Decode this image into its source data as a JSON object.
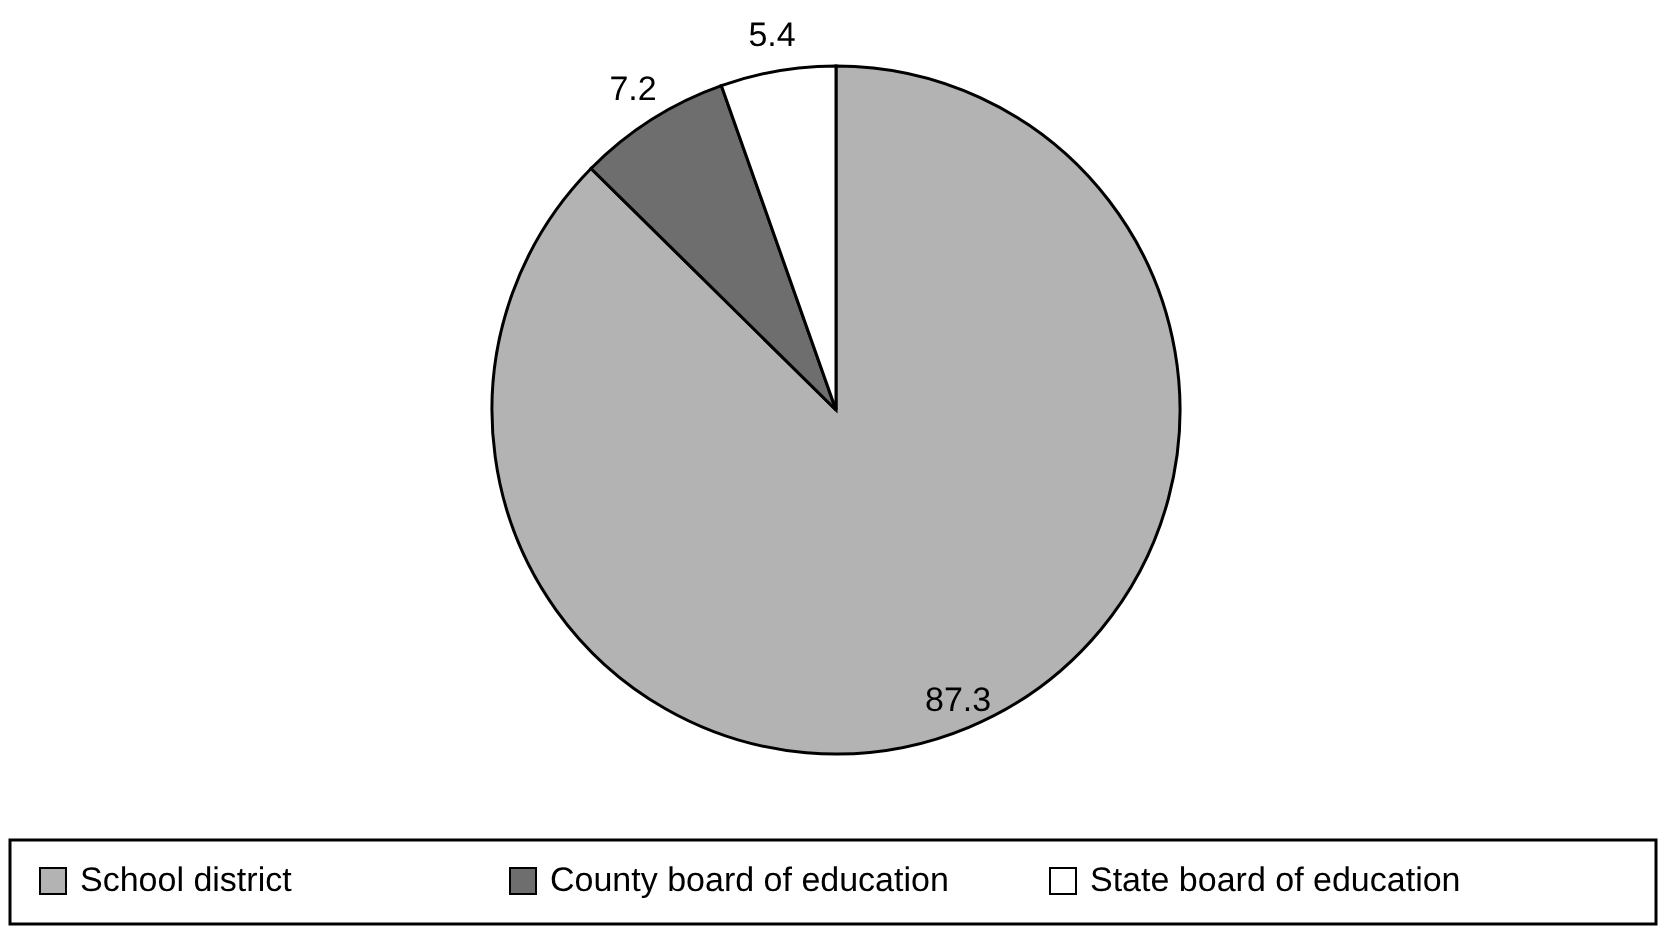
{
  "chart_data": {
    "type": "pie",
    "categories": [
      "School district",
      "County board of education",
      "State board of education"
    ],
    "values": [
      87.3,
      7.2,
      5.4
    ],
    "colors": [
      "#b3b3b3",
      "#6e6e6e",
      "#ffffff"
    ],
    "data_labels": true,
    "legend": "bottom"
  }
}
